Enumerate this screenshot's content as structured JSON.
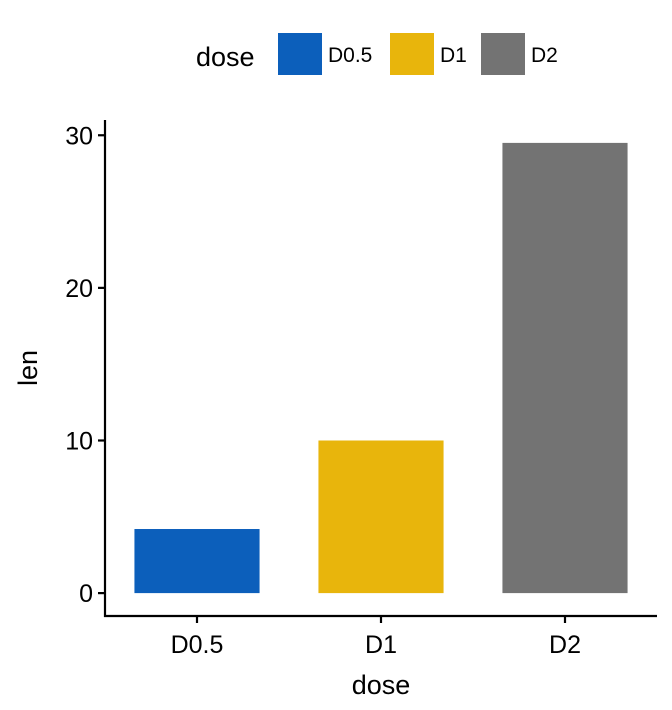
{
  "chart_data": {
    "type": "bar",
    "title": "",
    "xlabel": "dose",
    "ylabel": "len",
    "categories": [
      "D0.5",
      "D1",
      "D2"
    ],
    "values": [
      4.2,
      10.0,
      29.5
    ],
    "colors": [
      "#0C5FBB",
      "#E8B50C",
      "#737373"
    ],
    "ylim": [
      -1.5,
      31
    ],
    "yticks": [
      0,
      10,
      20,
      30
    ],
    "grid": false,
    "legend": {
      "title": "dose",
      "placement": "top",
      "entries": [
        "D0.5",
        "D1",
        "D2"
      ]
    }
  }
}
